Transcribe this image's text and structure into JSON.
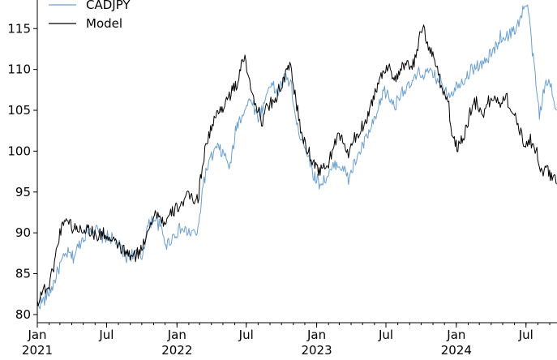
{
  "chart_data": {
    "type": "line",
    "title": "",
    "xlabel": "",
    "ylabel": "",
    "xlim": [
      "2021-01-01",
      "2024-09-20"
    ],
    "ylim": [
      79,
      118.5
    ],
    "yticks": [
      80,
      85,
      90,
      95,
      100,
      105,
      110,
      115
    ],
    "xticks": [
      {
        "date": "2021-01-01",
        "label": "Jan",
        "sublabel": "2021"
      },
      {
        "date": "2021-07-01",
        "label": "Jul",
        "sublabel": ""
      },
      {
        "date": "2022-01-01",
        "label": "Jan",
        "sublabel": "2022"
      },
      {
        "date": "2022-07-01",
        "label": "Jul",
        "sublabel": ""
      },
      {
        "date": "2023-01-01",
        "label": "Jan",
        "sublabel": "2023"
      },
      {
        "date": "2023-07-01",
        "label": "Jul",
        "sublabel": ""
      },
      {
        "date": "2024-01-01",
        "label": "Jan",
        "sublabel": "2024"
      },
      {
        "date": "2024-07-01",
        "label": "Jul",
        "sublabel": ""
      }
    ],
    "grid": false,
    "legend_position": "top-left",
    "series": [
      {
        "name": "CADJPY",
        "color": "#6a9fd0",
        "points": [
          [
            "2021-01-01",
            81.2
          ],
          [
            "2021-01-20",
            81.8
          ],
          [
            "2021-02-10",
            83.5
          ],
          [
            "2021-03-01",
            86.0
          ],
          [
            "2021-03-20",
            87.5
          ],
          [
            "2021-04-05",
            87.0
          ],
          [
            "2021-04-25",
            89.0
          ],
          [
            "2021-05-15",
            90.5
          ],
          [
            "2021-06-01",
            90.5
          ],
          [
            "2021-06-20",
            89.5
          ],
          [
            "2021-07-10",
            89.5
          ],
          [
            "2021-08-01",
            88.5
          ],
          [
            "2021-08-20",
            87.0
          ],
          [
            "2021-09-10",
            87.5
          ],
          [
            "2021-10-01",
            87.0
          ],
          [
            "2021-10-15",
            90.5
          ],
          [
            "2021-11-01",
            92.0
          ],
          [
            "2021-11-20",
            90.5
          ],
          [
            "2021-12-05",
            88.5
          ],
          [
            "2021-12-20",
            89.5
          ],
          [
            "2022-01-10",
            90.5
          ],
          [
            "2022-02-01",
            90.0
          ],
          [
            "2022-02-25",
            90.0
          ],
          [
            "2022-03-10",
            96.0
          ],
          [
            "2022-03-25",
            98.5
          ],
          [
            "2022-04-15",
            100.5
          ],
          [
            "2022-05-05",
            99.5
          ],
          [
            "2022-05-20",
            98.0
          ],
          [
            "2022-06-05",
            103.0
          ],
          [
            "2022-06-25",
            105.0
          ],
          [
            "2022-07-15",
            106.5
          ],
          [
            "2022-07-30",
            104.0
          ],
          [
            "2022-08-15",
            105.5
          ],
          [
            "2022-09-01",
            108.5
          ],
          [
            "2022-09-20",
            107.0
          ],
          [
            "2022-10-10",
            109.0
          ],
          [
            "2022-10-25",
            108.5
          ],
          [
            "2022-11-10",
            103.0
          ],
          [
            "2022-11-25",
            101.5
          ],
          [
            "2022-12-10",
            99.5
          ],
          [
            "2022-12-25",
            97.0
          ],
          [
            "2023-01-10",
            96.0
          ],
          [
            "2023-02-01",
            97.0
          ],
          [
            "2023-02-20",
            98.5
          ],
          [
            "2023-03-10",
            98.0
          ],
          [
            "2023-03-25",
            96.5
          ],
          [
            "2023-04-10",
            98.5
          ],
          [
            "2023-04-25",
            100.0
          ],
          [
            "2023-05-15",
            102.0
          ],
          [
            "2023-06-05",
            104.0
          ],
          [
            "2023-06-25",
            107.5
          ],
          [
            "2023-07-10",
            106.5
          ],
          [
            "2023-07-25",
            105.5
          ],
          [
            "2023-08-10",
            107.5
          ],
          [
            "2023-08-25",
            107.5
          ],
          [
            "2023-09-10",
            108.5
          ],
          [
            "2023-09-25",
            109.5
          ],
          [
            "2023-10-10",
            109.5
          ],
          [
            "2023-10-25",
            109.5
          ],
          [
            "2023-11-10",
            109.0
          ],
          [
            "2023-11-25",
            108.5
          ],
          [
            "2023-12-10",
            107.0
          ],
          [
            "2023-12-25",
            107.5
          ],
          [
            "2024-01-10",
            108.5
          ],
          [
            "2024-01-25",
            109.0
          ],
          [
            "2024-02-10",
            110.0
          ],
          [
            "2024-02-25",
            110.5
          ],
          [
            "2024-03-10",
            110.5
          ],
          [
            "2024-03-25",
            111.5
          ],
          [
            "2024-04-10",
            112.5
          ],
          [
            "2024-04-25",
            114.0
          ],
          [
            "2024-05-10",
            114.0
          ],
          [
            "2024-05-25",
            114.5
          ],
          [
            "2024-06-10",
            115.5
          ],
          [
            "2024-06-25",
            117.5
          ],
          [
            "2024-07-05",
            118.0
          ],
          [
            "2024-07-15",
            113.5
          ],
          [
            "2024-07-25",
            109.0
          ],
          [
            "2024-08-05",
            104.5
          ],
          [
            "2024-08-15",
            107.0
          ],
          [
            "2024-08-25",
            108.5
          ],
          [
            "2024-09-05",
            108.0
          ],
          [
            "2024-09-20",
            105.0
          ]
        ]
      },
      {
        "name": "Model",
        "color": "#000000",
        "points": [
          [
            "2021-01-01",
            81.5
          ],
          [
            "2021-01-15",
            83.0
          ],
          [
            "2021-02-01",
            83.5
          ],
          [
            "2021-02-15",
            86.5
          ],
          [
            "2021-03-01",
            90.0
          ],
          [
            "2021-03-15",
            92.0
          ],
          [
            "2021-04-05",
            90.5
          ],
          [
            "2021-04-25",
            90.5
          ],
          [
            "2021-05-15",
            90.5
          ],
          [
            "2021-06-05",
            89.5
          ],
          [
            "2021-06-25",
            90.0
          ],
          [
            "2021-07-10",
            89.0
          ],
          [
            "2021-08-01",
            88.5
          ],
          [
            "2021-08-20",
            87.5
          ],
          [
            "2021-09-10",
            87.0
          ],
          [
            "2021-10-01",
            88.0
          ],
          [
            "2021-10-20",
            91.0
          ],
          [
            "2021-11-10",
            92.5
          ],
          [
            "2021-12-01",
            91.0
          ],
          [
            "2021-12-20",
            92.5
          ],
          [
            "2022-01-10",
            93.5
          ],
          [
            "2022-02-01",
            94.5
          ],
          [
            "2022-02-25",
            94.0
          ],
          [
            "2022-03-10",
            99.0
          ],
          [
            "2022-03-25",
            102.0
          ],
          [
            "2022-04-15",
            104.5
          ],
          [
            "2022-05-01",
            105.5
          ],
          [
            "2022-05-20",
            107.0
          ],
          [
            "2022-06-05",
            108.0
          ],
          [
            "2022-06-25",
            111.5
          ],
          [
            "2022-07-10",
            108.5
          ],
          [
            "2022-07-25",
            106.0
          ],
          [
            "2022-08-10",
            103.5
          ],
          [
            "2022-08-25",
            105.5
          ],
          [
            "2022-09-15",
            106.5
          ],
          [
            "2022-10-05",
            108.5
          ],
          [
            "2022-10-25",
            110.5
          ],
          [
            "2022-11-10",
            105.5
          ],
          [
            "2022-11-25",
            101.5
          ],
          [
            "2022-12-10",
            100.0
          ],
          [
            "2022-12-25",
            98.5
          ],
          [
            "2023-01-10",
            97.5
          ],
          [
            "2023-02-01",
            98.5
          ],
          [
            "2023-02-20",
            101.5
          ],
          [
            "2023-03-10",
            101.5
          ],
          [
            "2023-03-25",
            99.5
          ],
          [
            "2023-04-10",
            101.5
          ],
          [
            "2023-04-25",
            102.5
          ],
          [
            "2023-05-15",
            104.5
          ],
          [
            "2023-06-05",
            107.5
          ],
          [
            "2023-06-25",
            110.0
          ],
          [
            "2023-07-10",
            110.5
          ],
          [
            "2023-07-25",
            108.5
          ],
          [
            "2023-08-10",
            110.0
          ],
          [
            "2023-08-25",
            110.5
          ],
          [
            "2023-09-10",
            110.5
          ],
          [
            "2023-09-25",
            113.5
          ],
          [
            "2023-10-05",
            115.0
          ],
          [
            "2023-10-20",
            113.0
          ],
          [
            "2023-11-10",
            110.5
          ],
          [
            "2023-11-25",
            107.5
          ],
          [
            "2023-12-10",
            106.5
          ],
          [
            "2023-12-20",
            102.0
          ],
          [
            "2024-01-05",
            100.5
          ],
          [
            "2024-01-25",
            102.5
          ],
          [
            "2024-02-10",
            105.5
          ],
          [
            "2024-02-25",
            106.0
          ],
          [
            "2024-03-10",
            104.5
          ],
          [
            "2024-03-25",
            106.0
          ],
          [
            "2024-04-10",
            106.5
          ],
          [
            "2024-04-25",
            106.0
          ],
          [
            "2024-05-10",
            107.0
          ],
          [
            "2024-05-25",
            104.5
          ],
          [
            "2024-06-10",
            103.5
          ],
          [
            "2024-06-25",
            101.0
          ],
          [
            "2024-07-10",
            101.5
          ],
          [
            "2024-07-25",
            100.5
          ],
          [
            "2024-08-05",
            98.5
          ],
          [
            "2024-08-15",
            97.0
          ],
          [
            "2024-08-25",
            98.0
          ],
          [
            "2024-09-05",
            97.0
          ],
          [
            "2024-09-20",
            96.0
          ]
        ]
      }
    ]
  }
}
